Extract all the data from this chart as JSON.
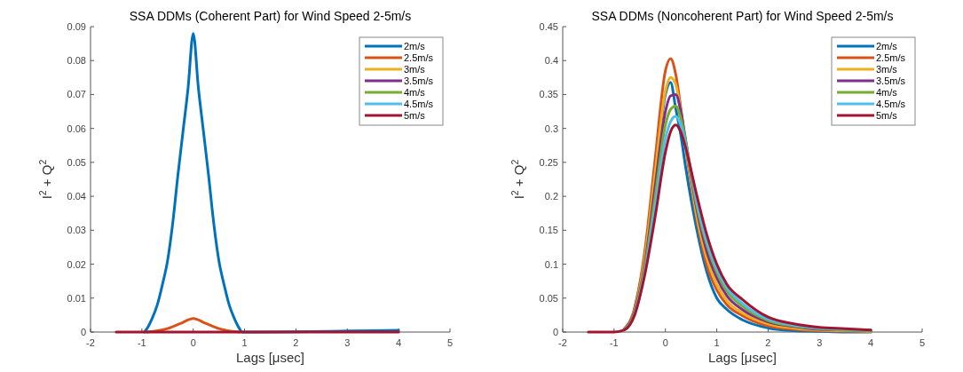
{
  "chart_data": [
    {
      "type": "line",
      "title": "SSA DDMs (Coherent Part) for Wind Speed 2-5m/s",
      "xlabel": "Lags [μsec]",
      "ylabel": "I$^{2}$ + Q$^{2}$",
      "xlim": [
        -2,
        5
      ],
      "xticks": [
        -2,
        -1,
        0,
        1,
        2,
        3,
        4,
        5
      ],
      "ylim": [
        0,
        0.09
      ],
      "yticks": [
        0,
        0.01,
        0.02,
        0.03,
        0.04,
        0.05,
        0.06,
        0.07,
        0.08,
        0.09
      ],
      "legend": "top right",
      "grid": false,
      "series": [
        {
          "name": "2m/s",
          "color": "#0072bd",
          "x": [
            -0.95,
            -0.9,
            -0.8,
            -0.7,
            -0.6,
            -0.5,
            -0.4,
            -0.3,
            -0.2,
            -0.1,
            0,
            0.1,
            0.2,
            0.3,
            0.4,
            0.5,
            0.6,
            0.7,
            0.8,
            0.9,
            0.95,
            1,
            4
          ],
          "values": [
            0,
            0.001,
            0.004,
            0.008,
            0.014,
            0.021,
            0.032,
            0.046,
            0.059,
            0.072,
            0.088,
            0.072,
            0.059,
            0.046,
            0.032,
            0.021,
            0.014,
            0.008,
            0.004,
            0.001,
            0,
            0,
            0.0005
          ]
        },
        {
          "name": "2.5m/s",
          "color": "#d95319",
          "x": [
            -0.9,
            -0.5,
            -0.25,
            0,
            0.25,
            0.5,
            0.9
          ],
          "values": [
            0,
            0.001,
            0.0025,
            0.004,
            0.0025,
            0.001,
            0
          ]
        },
        {
          "name": "3m/s",
          "color": "#edb120"
        },
        {
          "name": "3.5m/s",
          "color": "#7e2f8e"
        },
        {
          "name": "4m/s",
          "color": "#77ac30"
        },
        {
          "name": "4.5m/s",
          "color": "#4dbeee"
        },
        {
          "name": "5m/s",
          "color": "#a2142f",
          "x": [
            -1.5,
            4
          ],
          "values": [
            0,
            0
          ]
        }
      ]
    },
    {
      "type": "line",
      "title": "SSA DDMs (Noncoherent Part) for Wind Speed 2-5m/s",
      "xlabel": "Lags [μsec]",
      "ylabel": "I$^{2}$ + Q$^{2}$",
      "xlim": [
        -2,
        5
      ],
      "xticks": [
        -2,
        -1,
        0,
        1,
        2,
        3,
        4,
        5
      ],
      "ylim": [
        0,
        0.45
      ],
      "yticks": [
        0,
        0.05,
        0.1,
        0.15,
        0.2,
        0.25,
        0.3,
        0.35,
        0.4,
        0.45
      ],
      "legend": "top right",
      "grid": false,
      "x": [
        -1.5,
        -1,
        -0.8,
        -0.6,
        -0.4,
        -0.2,
        0,
        0.1,
        0.2,
        0.3,
        0.4,
        0.6,
        0.8,
        1,
        1.2,
        1.5,
        2,
        2.5,
        3,
        3.5,
        4
      ],
      "series": [
        {
          "name": "2m/s",
          "color": "#0072bd",
          "values": [
            null,
            null,
            null,
            0.035,
            0.11,
            0.23,
            0.35,
            0.368,
            0.33,
            0.29,
            0.24,
            0.155,
            0.09,
            0.05,
            0.033,
            0.018,
            0.006,
            0.002,
            0.001,
            0,
            0
          ]
        },
        {
          "name": "2.5m/s",
          "color": "#d95319",
          "values": [
            null,
            null,
            0.005,
            0.035,
            0.12,
            0.255,
            0.385,
            0.403,
            0.38,
            0.33,
            0.27,
            0.17,
            0.1,
            0.062,
            0.04,
            0.024,
            0.009,
            0.004,
            0.002,
            0.001,
            0.001
          ]
        },
        {
          "name": "3m/s",
          "color": "#edb120",
          "values": [
            null,
            null,
            0.004,
            0.032,
            0.11,
            0.235,
            0.355,
            0.375,
            0.365,
            0.325,
            0.275,
            0.175,
            0.11,
            0.07,
            0.046,
            0.028,
            0.012,
            0.006,
            0.003,
            0.002,
            0.001
          ]
        },
        {
          "name": "3.5m/s",
          "color": "#7e2f8e",
          "values": [
            null,
            null,
            0.004,
            0.03,
            0.1,
            0.215,
            0.325,
            0.348,
            0.35,
            0.325,
            0.28,
            0.185,
            0.12,
            0.08,
            0.053,
            0.033,
            0.015,
            0.008,
            0.004,
            0.003,
            0.002
          ]
        },
        {
          "name": "4m/s",
          "color": "#77ac30",
          "values": [
            null,
            null,
            0.004,
            0.028,
            0.095,
            0.2,
            0.305,
            0.328,
            0.333,
            0.315,
            0.28,
            0.19,
            0.13,
            0.088,
            0.06,
            0.038,
            0.017,
            0.009,
            0.005,
            0.003,
            0.002
          ]
        },
        {
          "name": "4.5m/s",
          "color": "#4dbeee",
          "values": [
            null,
            null,
            0.003,
            0.026,
            0.09,
            0.185,
            0.285,
            0.31,
            0.318,
            0.305,
            0.275,
            0.195,
            0.135,
            0.093,
            0.065,
            0.042,
            0.019,
            0.01,
            0.006,
            0.004,
            0.003
          ]
        },
        {
          "name": "5m/s",
          "color": "#a2142f",
          "values": [
            0,
            0,
            0.003,
            0.025,
            0.085,
            0.17,
            0.265,
            0.295,
            0.305,
            0.295,
            0.27,
            0.205,
            0.145,
            0.1,
            0.07,
            0.048,
            0.022,
            0.012,
            0.007,
            0.005,
            0.003
          ]
        }
      ]
    }
  ]
}
